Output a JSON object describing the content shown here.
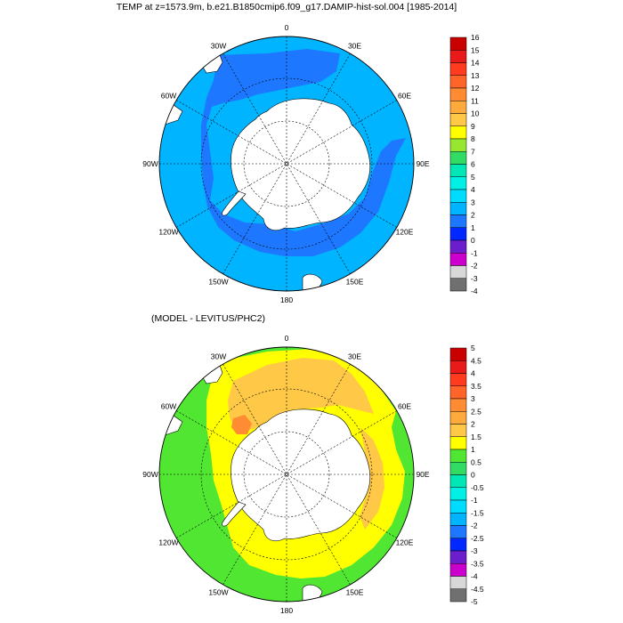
{
  "panels": [
    {
      "title": "TEMP at z=1573.9m, b.e21.B1850cmip6.f09_g17.DAMIP-hist-sol.004 [1985-2014]",
      "lon_labels": [
        "0",
        "30E",
        "60E",
        "90E",
        "120E",
        "150E",
        "180",
        "150W",
        "120W",
        "90W",
        "60W",
        "30W"
      ],
      "colorbar_labels": [
        "16",
        "15",
        "14",
        "13",
        "12",
        "11",
        "10",
        "9",
        "8",
        "7",
        "6",
        "5",
        "4",
        "3",
        "2",
        "1",
        "0",
        "-1",
        "-2",
        "-3",
        "-4"
      ],
      "colorbar_colors": [
        "#c80000",
        "#e81a1a",
        "#ff3c1e",
        "#ff6428",
        "#ff8c32",
        "#ffaa3c",
        "#ffc846",
        "#ffff00",
        "#96e632",
        "#32dc64",
        "#00e6b4",
        "#00f0e6",
        "#00dcff",
        "#00b4ff",
        "#1e78ff",
        "#0028ff",
        "#6a1ecc",
        "#cc00cc",
        "#d8d8d8",
        "#707070"
      ]
    },
    {
      "title": "(MODEL - LEVITUS/PHC2)",
      "lon_labels": [
        "0",
        "30E",
        "60E",
        "90E",
        "120E",
        "150E",
        "180",
        "150W",
        "120W",
        "90W",
        "60W",
        "30W"
      ],
      "colorbar_labels": [
        "5",
        "4.5",
        "4",
        "3.5",
        "3",
        "2.5",
        "2",
        "1.5",
        "1",
        "0.5",
        "0",
        "-0.5",
        "-1",
        "-1.5",
        "-2",
        "-2.5",
        "-3",
        "-3.5",
        "-4",
        "-4.5",
        "-5"
      ],
      "colorbar_colors": [
        "#c80000",
        "#e81a1a",
        "#ff3c1e",
        "#ff6428",
        "#ff8c32",
        "#ffaa3c",
        "#ffc846",
        "#ffff00",
        "#50e632",
        "#32dc64",
        "#00e6b4",
        "#00f0e6",
        "#00dcff",
        "#00b4ff",
        "#1e78ff",
        "#0028ff",
        "#6a1ecc",
        "#cc00cc",
        "#d8d8d8",
        "#707070"
      ]
    }
  ],
  "colors": {
    "top_ocean": "#00b4ff",
    "top_shelf": "#1e78ff",
    "bottom_ocean": "#50e632",
    "bottom_warm": "#ffff00",
    "bottom_hot": "#ffc846",
    "bottom_hotter": "#ff8c32",
    "land": "#ffffff"
  }
}
